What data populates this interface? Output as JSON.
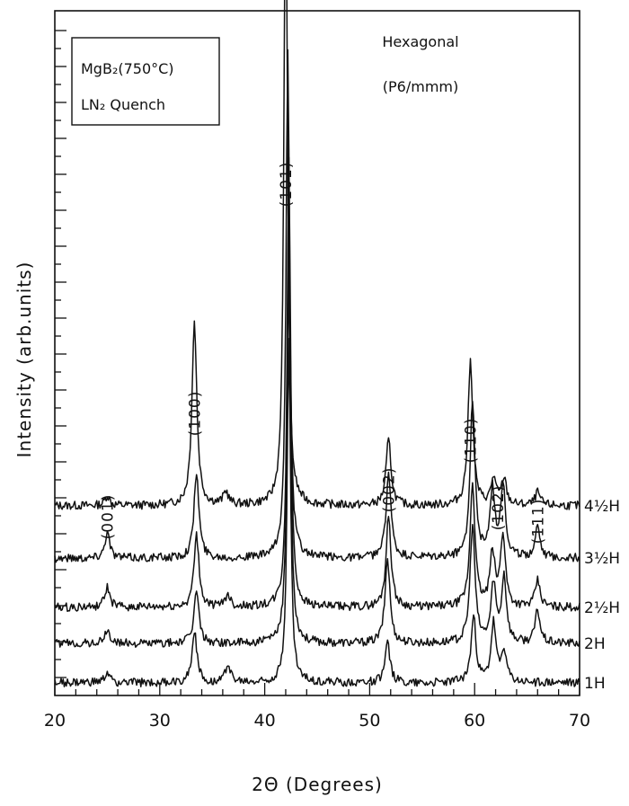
{
  "chart_data": {
    "type": "line",
    "xlabel": "2Θ (Degrees)",
    "ylabel": "Intensity (arb.units)",
    "xlim": [
      20,
      70
    ],
    "x_ticks": [
      "20",
      "30",
      "40",
      "50",
      "60",
      "70"
    ],
    "grid": false,
    "legend_box": [
      "MgB₂(750°C)",
      "LN₂ Quench"
    ],
    "annotation": [
      "Hexagonal",
      "(P6/mmm)"
    ],
    "peak_labels": [
      {
        "text": "(001)",
        "x": 25.0
      },
      {
        "text": "(100)",
        "x": 33.3
      },
      {
        "text": "(101)",
        "x": 42.0
      },
      {
        "text": "(002)",
        "x": 51.8
      },
      {
        "text": "(110)",
        "x": 59.6
      },
      {
        "text": "(102)",
        "x": 62.2
      },
      {
        "text": "(111)",
        "x": 66.0
      }
    ],
    "series": [
      {
        "name": "4½H",
        "baseline": 24,
        "peaks": [
          [
            25.0,
            1.5
          ],
          [
            33.3,
            28
          ],
          [
            36.3,
            2
          ],
          [
            42.0,
            100
          ],
          [
            51.8,
            10
          ],
          [
            59.6,
            22
          ],
          [
            61.8,
            4
          ],
          [
            62.8,
            4
          ],
          [
            66.0,
            2
          ]
        ]
      },
      {
        "name": "3½H",
        "baseline": 16,
        "peaks": [
          [
            25.0,
            4
          ],
          [
            33.5,
            13
          ],
          [
            42.2,
            78
          ],
          [
            51.8,
            13
          ],
          [
            59.8,
            24
          ],
          [
            61.7,
            10
          ],
          [
            62.7,
            11
          ],
          [
            66.0,
            5
          ]
        ]
      },
      {
        "name": "2½H",
        "baseline": 8.5,
        "peaks": [
          [
            25.0,
            3
          ],
          [
            33.5,
            11
          ],
          [
            36.5,
            2
          ],
          [
            42.3,
            68
          ],
          [
            51.8,
            14
          ],
          [
            59.8,
            19
          ],
          [
            61.7,
            8
          ],
          [
            62.7,
            11
          ],
          [
            66.0,
            4
          ]
        ]
      },
      {
        "name": "2H",
        "baseline": 3,
        "peaks": [
          [
            25.0,
            2
          ],
          [
            33.5,
            8
          ],
          [
            42.3,
            62
          ],
          [
            51.7,
            13
          ],
          [
            59.8,
            18
          ],
          [
            61.8,
            9
          ],
          [
            62.8,
            10
          ],
          [
            66.0,
            5
          ]
        ]
      },
      {
        "name": "1H",
        "baseline": -3,
        "peaks": [
          [
            25.0,
            1.5
          ],
          [
            33.3,
            8
          ],
          [
            36.5,
            3
          ],
          [
            42.3,
            52
          ],
          [
            51.7,
            6
          ],
          [
            59.9,
            10
          ],
          [
            61.8,
            9
          ],
          [
            62.8,
            5
          ]
        ]
      }
    ]
  }
}
